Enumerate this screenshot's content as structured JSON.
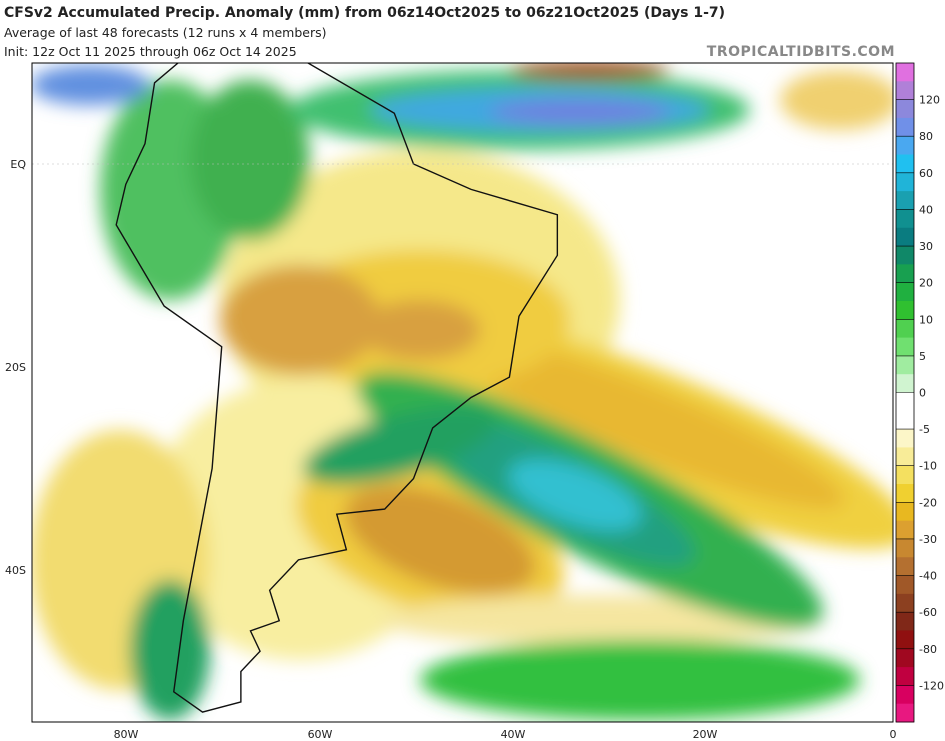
{
  "header": {
    "title": "CFSv2 Accumulated Precip. Anomaly (mm) from 06z14Oct2025 to 06z21Oct2025 (Days 1-7)",
    "subtitle": "Average of last 48 forecasts (12 runs x 4 members)",
    "init": "Init: 12z Oct 11 2025 through 06z Oct 14 2025",
    "watermark": "TROPICALTIDBITS.COM"
  },
  "map": {
    "lat_labels": [
      "EQ",
      "20S",
      "40S"
    ],
    "lon_labels": [
      "80W",
      "60W",
      "40W",
      "20W",
      "0"
    ]
  },
  "colorbar": {
    "labels": [
      120,
      80,
      60,
      40,
      30,
      20,
      10,
      5,
      0,
      -5,
      -10,
      -20,
      -30,
      -40,
      -60,
      -80,
      -120
    ]
  }
}
